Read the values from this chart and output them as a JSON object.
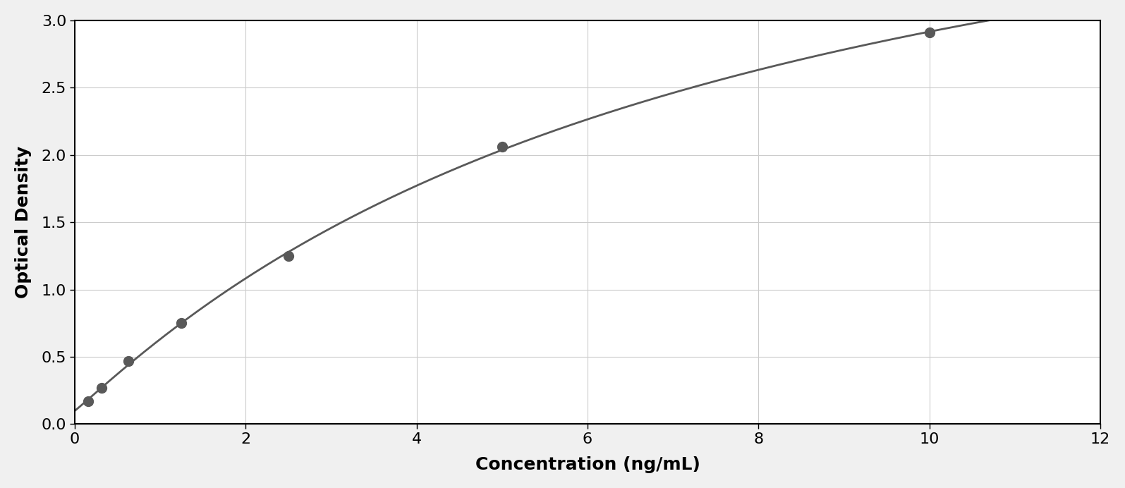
{
  "x_data": [
    0.156,
    0.313,
    0.625,
    1.25,
    2.5,
    5.0,
    10.0
  ],
  "y_data": [
    0.17,
    0.27,
    0.47,
    0.75,
    1.25,
    2.06,
    2.91
  ],
  "xlabel": "Concentration (ng/mL)",
  "ylabel": "Optical Density",
  "xlim": [
    0,
    12
  ],
  "ylim": [
    0,
    3
  ],
  "xticks": [
    0,
    2,
    4,
    6,
    8,
    10,
    12
  ],
  "yticks": [
    0,
    0.5,
    1.0,
    1.5,
    2.0,
    2.5,
    3.0
  ],
  "marker_color": "#595959",
  "line_color": "#595959",
  "grid_color": "#cccccc",
  "background_color": "#ffffff",
  "marker_size": 10,
  "line_width": 2.0,
  "xlabel_fontsize": 18,
  "ylabel_fontsize": 18,
  "tick_fontsize": 16,
  "figure_bg": "#f0f0f0"
}
